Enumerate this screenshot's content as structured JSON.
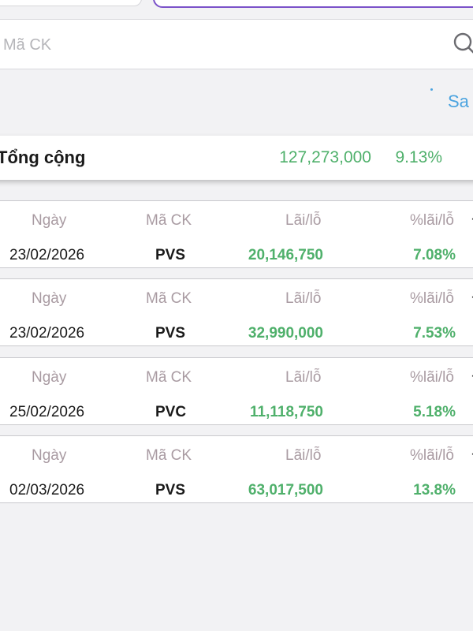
{
  "search": {
    "placeholder": "Mã CK"
  },
  "link": {
    "label_partial": "Sa"
  },
  "total": {
    "label": "Tổng cộng",
    "value": "127,273,000",
    "percent": "9.13%"
  },
  "columns": {
    "date": "Ngày",
    "code": "Mã CK",
    "pl": "Lãi/lỗ",
    "pct": "%lãi/lỗ"
  },
  "trades": [
    {
      "date": "23/02/2026",
      "code": "PVS",
      "pl": "20,146,750",
      "pct": "7.08%"
    },
    {
      "date": "23/02/2026",
      "code": "PVS",
      "pl": "32,990,000",
      "pct": "7.53%"
    },
    {
      "date": "25/02/2026",
      "code": "PVC",
      "pl": "11,118,750",
      "pct": "5.18%"
    },
    {
      "date": "02/03/2026",
      "code": "PVS",
      "pl": "63,017,500",
      "pct": "13.8%"
    }
  ],
  "colors": {
    "accent_purple": "#7b52c9",
    "positive_green": "#4fb06b",
    "link_blue": "#4aa3df",
    "header_gray": "#a99ba2"
  }
}
